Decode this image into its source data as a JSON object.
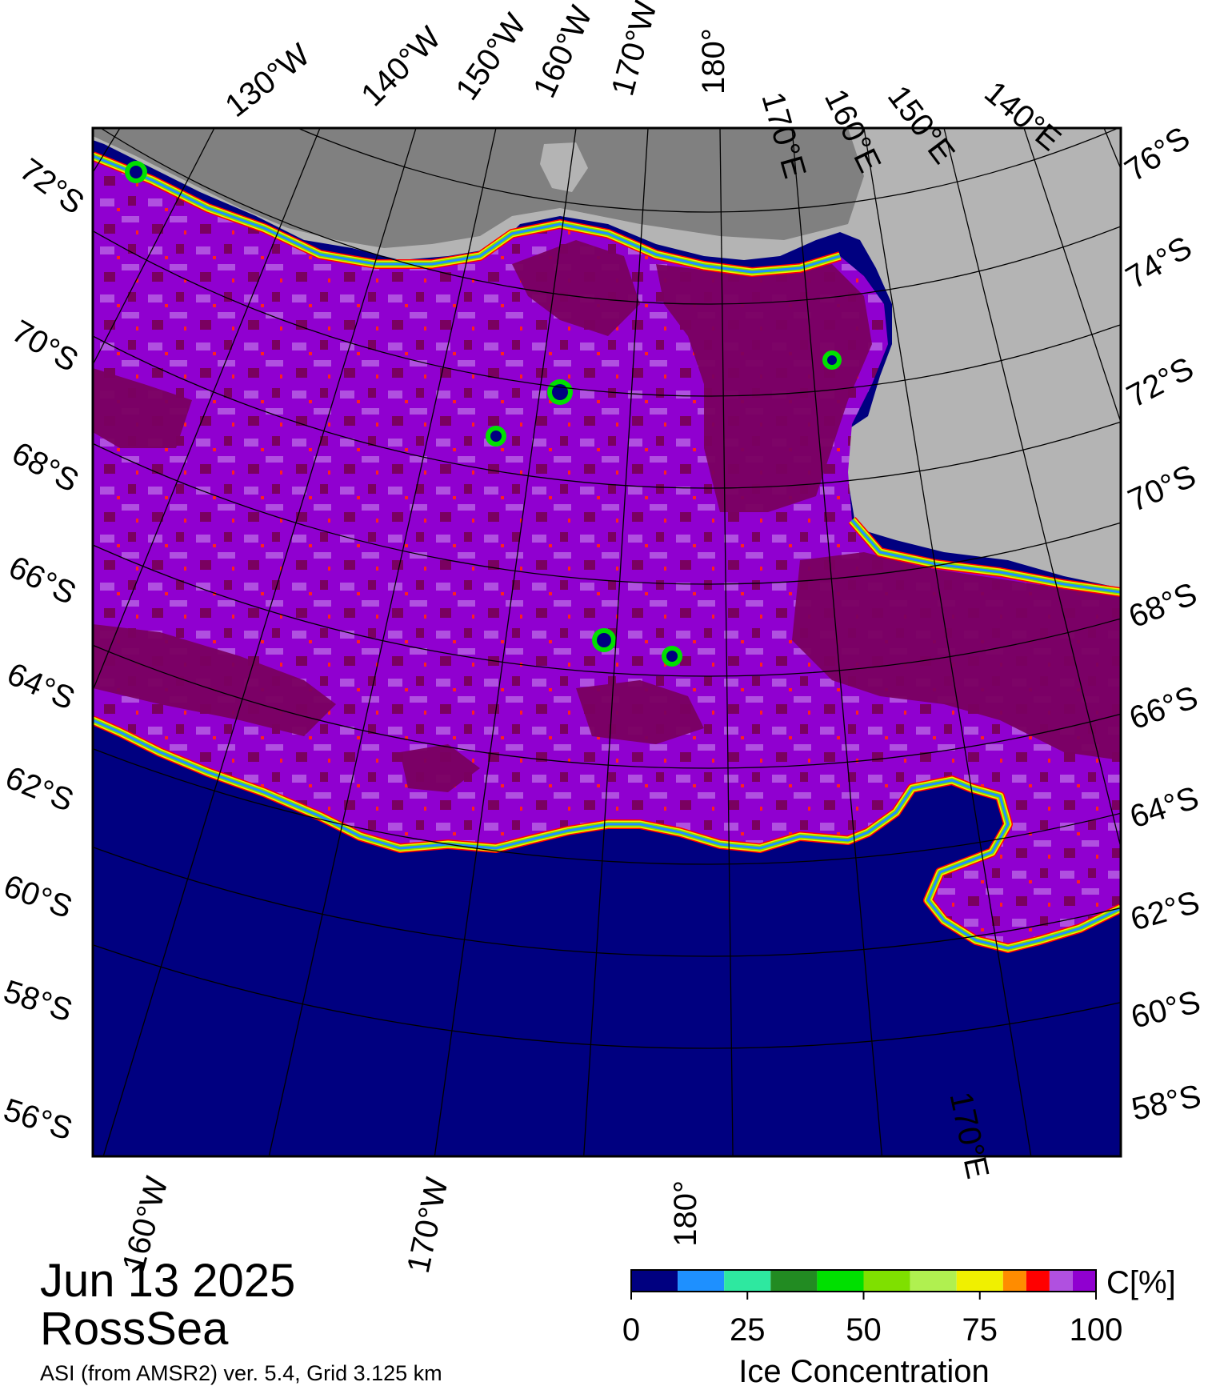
{
  "date": "Jun 13 2025",
  "region": "RossSea",
  "source": "ASI (from AMSR2) ver. 5.4,  Grid 3.125 km",
  "top_labels": [
    "130°W",
    "140°W",
    "150°W",
    "160°W",
    "170°W",
    "180°",
    "170°E",
    "160°E",
    "150°E",
    "140°E"
  ],
  "bottom_labels": [
    "160°W",
    "170°W",
    "180°",
    "170°E"
  ],
  "left_labels": [
    "72°S",
    "70°S",
    "68°S",
    "66°S",
    "64°S",
    "62°S",
    "60°S",
    "58°S",
    "56°S"
  ],
  "right_labels": [
    "76°S",
    "74°S",
    "72°S",
    "70°S",
    "68°S",
    "66°S",
    "64°S",
    "62°S",
    "60°S",
    "58°S"
  ],
  "colorbar": {
    "title": "Ice Concentration",
    "unit": "C[%]",
    "ticks": [
      "0",
      "25",
      "50",
      "75",
      "100"
    ],
    "colors": [
      "#000080",
      "#1e90ff",
      "#2ee8a0",
      "#228b22",
      "#00e000",
      "#7fe000",
      "#b0f050",
      "#f0f000",
      "#ff8c00",
      "#ff0000",
      "#b050e0",
      "#9000d0"
    ]
  },
  "colors": {
    "open_water": "#000080",
    "land": "#b4b4b4",
    "ice_shelf": "#808080",
    "ice_100": "#7a0060",
    "ice_high": "#9000d0",
    "ice_mid": "#b050e0"
  }
}
